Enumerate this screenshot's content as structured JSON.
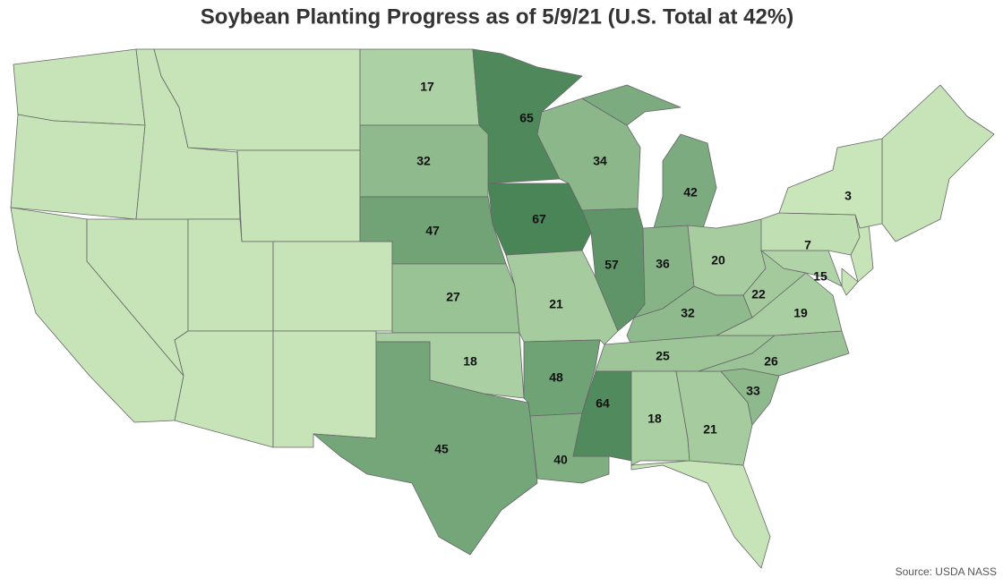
{
  "chart_data": {
    "type": "choropleth",
    "title": "Soybean Planting Progress as of 5/9/21 (U.S. Total at 42%)",
    "source": "Source: USDA NASS",
    "values": [
      17,
      65,
      32,
      47,
      27,
      18,
      45,
      67,
      21,
      48,
      40,
      34,
      57,
      42,
      36,
      20,
      32,
      25,
      64,
      18,
      21,
      33,
      26,
      19,
      22,
      15,
      7,
      3
    ],
    "color_range": [
      "#c8e6ba",
      "#4a8558"
    ],
    "na_color": "#c6e4b8"
  }
}
